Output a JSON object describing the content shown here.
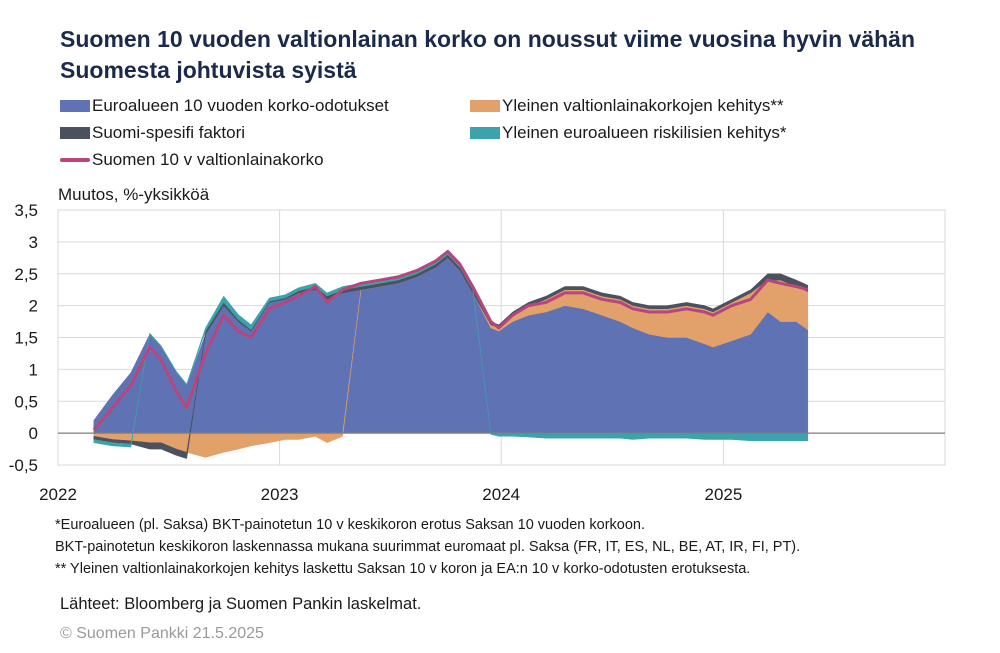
{
  "chart_data": {
    "type": "area",
    "title": "Suomen 10 vuoden valtionlainan korko on noussut viime vuosina hyvin vähän Suomesta johtuvista syistä",
    "ylabel": "Muutos, %-yksikköä",
    "ylim": [
      -0.5,
      3.5
    ],
    "yticks": [
      "3,5",
      "3",
      "2,5",
      "2",
      "1,5",
      "1",
      "0,5",
      "0",
      "-0,5"
    ],
    "yticks_values": [
      3.5,
      3,
      2.5,
      2,
      1.5,
      1,
      0.5,
      0,
      -0.5
    ],
    "xlim": [
      "2022-01-01",
      "2026-01-01"
    ],
    "xticks": [
      "2022",
      "2023",
      "2024",
      "2025"
    ],
    "grid": true,
    "legend_position": "top",
    "x": [
      "2022-03-01",
      "2022-04-01",
      "2022-05-01",
      "2022-06-01",
      "2022-06-20",
      "2022-07-15",
      "2022-08-01",
      "2022-09-01",
      "2022-10-01",
      "2022-10-25",
      "2022-11-15",
      "2022-12-15",
      "2023-01-10",
      "2023-02-01",
      "2023-03-01",
      "2023-03-20",
      "2023-04-15",
      "2023-05-15",
      "2023-06-15",
      "2023-07-15",
      "2023-08-15",
      "2023-09-15",
      "2023-10-05",
      "2023-10-25",
      "2023-11-15",
      "2023-12-15",
      "2023-12-28",
      "2024-01-20",
      "2024-02-15",
      "2024-03-15",
      "2024-04-15",
      "2024-05-15",
      "2024-06-15",
      "2024-07-15",
      "2024-08-05",
      "2024-09-01",
      "2024-10-01",
      "2024-11-01",
      "2024-12-01",
      "2024-12-15",
      "2025-01-15",
      "2025-02-15",
      "2025-03-15",
      "2025-04-05",
      "2025-05-01",
      "2025-05-20"
    ],
    "series": [
      {
        "name": "Euroalueen 10 vuoden korko-odotukset",
        "color": "#5f73b4",
        "values": [
          0.2,
          0.6,
          0.95,
          1.55,
          1.35,
          0.95,
          0.75,
          1.55,
          2.0,
          1.75,
          1.6,
          2.05,
          2.1,
          2.2,
          2.25,
          2.1,
          2.2,
          2.25,
          2.3,
          2.35,
          2.45,
          2.6,
          2.75,
          2.55,
          2.2,
          1.65,
          1.6,
          1.75,
          1.85,
          1.9,
          2.0,
          1.95,
          1.85,
          1.75,
          1.65,
          1.55,
          1.5,
          1.5,
          1.4,
          1.35,
          1.45,
          1.55,
          1.9,
          1.75,
          1.75,
          1.62
        ]
      },
      {
        "name": "Yleinen valtionlainakorkojen kehitys**",
        "color": "#e2a06a",
        "values": [
          -0.05,
          -0.1,
          -0.12,
          -0.15,
          -0.15,
          -0.25,
          -0.3,
          -0.38,
          -0.3,
          -0.25,
          -0.2,
          -0.15,
          -0.1,
          -0.1,
          -0.05,
          -0.15,
          -0.05,
          0.0,
          0.0,
          0.0,
          0.0,
          0.0,
          0.0,
          0.0,
          0.0,
          0.05,
          0.05,
          0.1,
          0.15,
          0.2,
          0.25,
          0.3,
          0.3,
          0.35,
          0.35,
          0.4,
          0.45,
          0.5,
          0.55,
          0.55,
          0.6,
          0.65,
          0.5,
          0.65,
          0.55,
          0.6
        ]
      },
      {
        "name": "Suomi-spesifi faktori",
        "color": "#4a5260",
        "values": [
          -0.05,
          -0.05,
          -0.05,
          -0.1,
          -0.1,
          -0.1,
          -0.1,
          0.05,
          0.05,
          0.03,
          0.02,
          0.02,
          0.02,
          0.03,
          0.05,
          0.05,
          0.05,
          0.05,
          0.05,
          0.05,
          0.05,
          0.05,
          0.05,
          0.05,
          0.05,
          0.05,
          0.05,
          0.05,
          0.05,
          0.05,
          0.05,
          0.05,
          0.05,
          0.05,
          0.05,
          0.05,
          0.05,
          0.05,
          0.05,
          0.05,
          0.05,
          0.05,
          0.1,
          0.1,
          0.1,
          0.1
        ]
      },
      {
        "name": "Yleinen euroalueen riskilisien kehitys*",
        "color": "#3aa3ac",
        "values": [
          -0.05,
          -0.05,
          -0.05,
          0.02,
          0.02,
          0.02,
          0.02,
          0.05,
          0.1,
          0.08,
          0.08,
          0.05,
          0.05,
          0.05,
          0.05,
          0.05,
          0.05,
          0.05,
          0.05,
          0.05,
          0.05,
          0.05,
          0.05,
          0.05,
          0.05,
          -0.02,
          -0.05,
          -0.05,
          -0.06,
          -0.08,
          -0.08,
          -0.08,
          -0.08,
          -0.08,
          -0.1,
          -0.08,
          -0.08,
          -0.08,
          -0.1,
          -0.1,
          -0.1,
          -0.12,
          -0.12,
          -0.12,
          -0.12,
          -0.12
        ]
      },
      {
        "name": "Suomen 10 v valtionlainakorko",
        "color": "#b8467e",
        "values": [
          0.05,
          0.4,
          0.75,
          1.35,
          1.15,
          0.65,
          0.4,
          1.25,
          1.85,
          1.6,
          1.5,
          1.95,
          2.05,
          2.15,
          2.3,
          2.05,
          2.25,
          2.35,
          2.4,
          2.45,
          2.55,
          2.7,
          2.85,
          2.65,
          2.3,
          1.75,
          1.65,
          1.85,
          2.0,
          2.05,
          2.2,
          2.2,
          2.1,
          2.05,
          1.95,
          1.9,
          1.9,
          1.95,
          1.9,
          1.85,
          2.0,
          2.1,
          2.4,
          2.35,
          2.3,
          2.25
        ]
      }
    ]
  },
  "legend": {
    "items": [
      {
        "label": "Euroalueen 10 vuoden korko-odotukset",
        "color": "#5f73b4",
        "kind": "area"
      },
      {
        "label": "Yleinen valtionlainakorkojen kehitys**",
        "color": "#e2a06a",
        "kind": "area"
      },
      {
        "label": "Suomi-spesifi faktori",
        "color": "#4a5260",
        "kind": "area"
      },
      {
        "label": "Yleinen euroalueen riskilisien kehitys*",
        "color": "#3aa3ac",
        "kind": "area"
      },
      {
        "label": "Suomen 10 v valtionlainakorko",
        "color": "#b8467e",
        "kind": "line"
      }
    ]
  },
  "notes": {
    "line1": "*Euroalueen (pl. Saksa) BKT-painotetun 10 v keskikoron erotus Saksan 10 vuoden korkoon.",
    "line2": "BKT-painotetun keskikoron laskennassa mukana suurimmat euromaat pl. Saksa (FR, IT, ES, NL, BE, AT, IR, FI, PT).",
    "line3": "** Yleinen valtionlainakorkojen kehitys laskettu Saksan 10 v koron ja EA:n 10 v korko-odotusten erotuksesta."
  },
  "source": "Lähteet: Bloomberg ja Suomen Pankin laskelmat.",
  "copyright": "© Suomen Pankki 21.5.2025"
}
